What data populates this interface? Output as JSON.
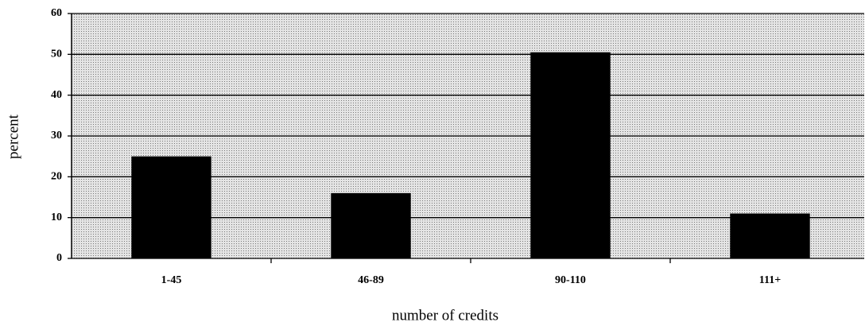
{
  "chart_data": {
    "type": "bar",
    "categories": [
      "1-45",
      "46-89",
      "90-110",
      "111+"
    ],
    "values": [
      25,
      16,
      50.5,
      11
    ],
    "color": "#000000",
    "ylim": [
      0,
      60
    ],
    "yticks": [
      0,
      10,
      20,
      30,
      40,
      50,
      60
    ],
    "grid": true,
    "xlabel": "number of credits",
    "ylabel": "percent"
  }
}
